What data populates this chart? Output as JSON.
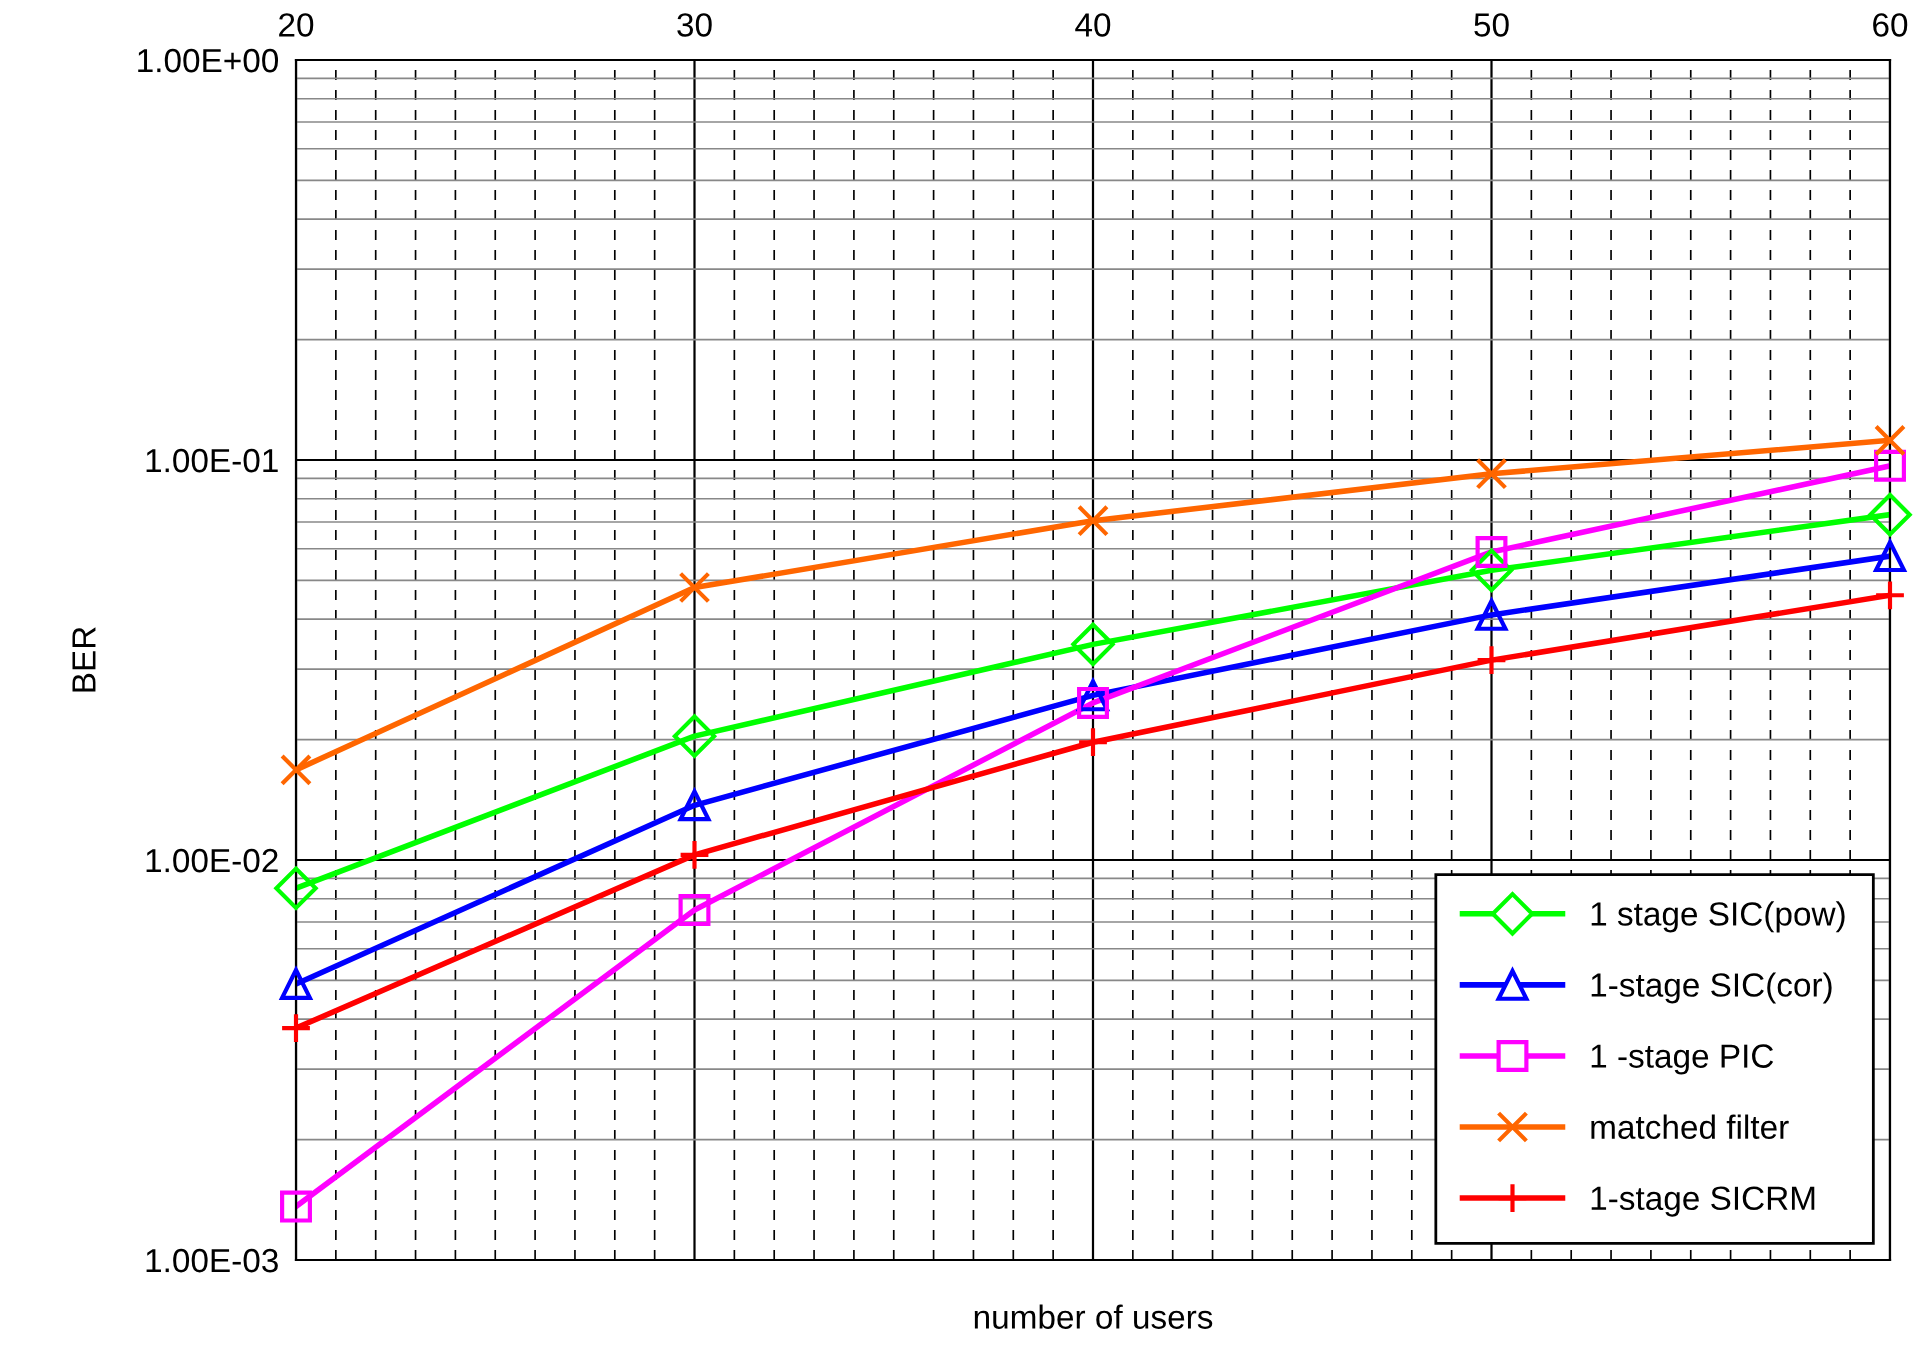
{
  "chart_data": {
    "type": "line",
    "xlabel": "number of users",
    "ylabel": "BER",
    "log": "y",
    "x": [
      20,
      30,
      40,
      50,
      60
    ],
    "xlim": [
      20,
      60
    ],
    "xticks": [
      20,
      30,
      40,
      50,
      60
    ],
    "ylim": [
      0.001,
      1
    ],
    "yticks": [
      {
        "value": 0.001,
        "label": "1.00E-03"
      },
      {
        "value": 0.01,
        "label": "1.00E-02"
      },
      {
        "value": 0.1,
        "label": "1.00E-01"
      },
      {
        "value": 1,
        "label": "1.00E+00"
      }
    ],
    "grid": true,
    "legend": "bottom right",
    "series": [
      {
        "name": "1 stage SIC(pow)",
        "color": "#00ff00",
        "marker": "diamond",
        "values": [
          0.0085,
          0.0204,
          0.0346,
          0.053,
          0.073
        ]
      },
      {
        "name": "1-stage SIC(cor)",
        "color": "#0000ff",
        "marker": "triangle",
        "values": [
          0.0049,
          0.0137,
          0.0258,
          0.041,
          0.0575
        ]
      },
      {
        "name": "1 -stage PIC",
        "color": "#ff00ff",
        "marker": "square",
        "values": [
          0.00136,
          0.0075,
          0.0247,
          0.0589,
          0.0967
        ]
      },
      {
        "name": "matched filter",
        "color": "#ff6600",
        "marker": "cross",
        "values": [
          0.0168,
          0.048,
          0.0705,
          0.0924,
          0.112
        ]
      },
      {
        "name": "1-stage SICRM",
        "color": "#ff0000",
        "marker": "plus",
        "values": [
          0.0038,
          0.0103,
          0.0197,
          0.0316,
          0.0459
        ]
      }
    ]
  }
}
